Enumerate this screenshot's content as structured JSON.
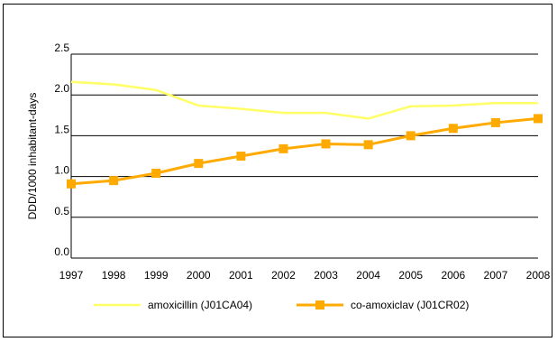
{
  "chart_data": {
    "type": "line",
    "title": "",
    "xlabel": "",
    "ylabel": "DDD/1000 inhabitant-days",
    "ylim": [
      0.0,
      2.5
    ],
    "yticks": [
      "0.0",
      "0.5",
      "1.0",
      "1.5",
      "2.0",
      "2.5"
    ],
    "categories": [
      "1997",
      "1998",
      "1999",
      "2000",
      "2001",
      "2002",
      "2003",
      "2004",
      "2005",
      "2006",
      "2007",
      "2008"
    ],
    "grid": "horizontal",
    "legend": "bottom",
    "series": [
      {
        "name": "amoxicillin (J01CA04)",
        "color": "#ffff66",
        "marker": "none",
        "values": [
          2.16,
          2.13,
          2.06,
          1.87,
          1.83,
          1.78,
          1.78,
          1.71,
          1.86,
          1.87,
          1.9,
          1.9
        ]
      },
      {
        "name": "co-amoxiclav (J01CR02)",
        "color": "#ffaa00",
        "marker": "square",
        "values": [
          0.91,
          0.95,
          1.04,
          1.16,
          1.25,
          1.34,
          1.4,
          1.39,
          1.5,
          1.59,
          1.66,
          1.71
        ]
      }
    ]
  }
}
